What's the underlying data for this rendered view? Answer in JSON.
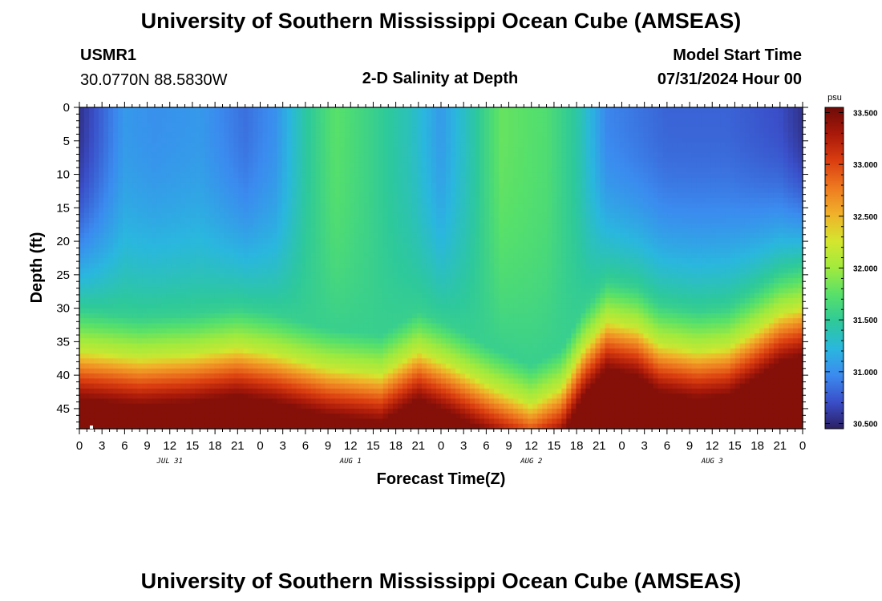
{
  "header": {
    "title": "University of Southern Mississippi Ocean Cube (AMSEAS)",
    "station_id": "USMR1",
    "station_coords": "30.0770N  88.5830W",
    "plot_title": "2-D Salinity at Depth",
    "model_start_label": "Model Start Time",
    "model_start_value": "07/31/2024 Hour 00"
  },
  "footer": {
    "title": "University of Southern Mississippi Ocean Cube (AMSEAS)"
  },
  "chart_data": {
    "type": "heatmap",
    "xlabel": "Forecast Time(Z)",
    "ylabel": "Depth (ft)",
    "x_hours": [
      0,
      96
    ],
    "x_tick_labels": [
      "0",
      "3",
      "6",
      "9",
      "12",
      "15",
      "18",
      "21",
      "0",
      "3",
      "6",
      "9",
      "12",
      "15",
      "18",
      "21",
      "0",
      "3",
      "6",
      "9",
      "12",
      "15",
      "18",
      "21",
      "0",
      "3",
      "6",
      "9",
      "12",
      "15",
      "18",
      "21",
      "0"
    ],
    "x_date_labels": [
      {
        "hour": 12,
        "label": "JUL 31"
      },
      {
        "hour": 36,
        "label": "AUG 1"
      },
      {
        "hour": 60,
        "label": "AUG 2"
      },
      {
        "hour": 84,
        "label": "AUG 3"
      }
    ],
    "y_range_ft": [
      0,
      48
    ],
    "y_tick_values": [
      0,
      5,
      10,
      15,
      20,
      25,
      30,
      35,
      40,
      45
    ],
    "colorbar": {
      "unit": "psu",
      "range": [
        30.45,
        33.55
      ],
      "tick_labels": [
        "33.500",
        "33.000",
        "32.500",
        "32.000",
        "31.500",
        "31.000",
        "30.500"
      ],
      "tick_values": [
        33.5,
        33.0,
        32.5,
        32.0,
        31.5,
        31.0,
        30.5
      ],
      "colormap": [
        "#2b1f63",
        "#3a4fc9",
        "#3b8bef",
        "#2ab7de",
        "#2ec99a",
        "#57e06a",
        "#a0ea3e",
        "#d4e62e",
        "#f0b22a",
        "#ee7a20",
        "#db3e10",
        "#a8190a",
        "#6e0b08"
      ]
    },
    "surface_salinity_profile": [
      {
        "hour": 0,
        "psu": 30.55
      },
      {
        "hour": 6,
        "psu": 31.05
      },
      {
        "hour": 10,
        "psu": 31.0
      },
      {
        "hour": 16,
        "psu": 31.05
      },
      {
        "hour": 22,
        "psu": 30.85
      },
      {
        "hour": 26,
        "psu": 31.0
      },
      {
        "hour": 30,
        "psu": 31.45
      },
      {
        "hour": 34,
        "psu": 31.75
      },
      {
        "hour": 38,
        "psu": 31.6
      },
      {
        "hour": 44,
        "psu": 31.35
      },
      {
        "hour": 48,
        "psu": 31.05
      },
      {
        "hour": 52,
        "psu": 31.4
      },
      {
        "hour": 56,
        "psu": 31.8
      },
      {
        "hour": 62,
        "psu": 31.7
      },
      {
        "hour": 66,
        "psu": 31.45
      },
      {
        "hour": 70,
        "psu": 30.95
      },
      {
        "hour": 78,
        "psu": 30.8
      },
      {
        "hour": 86,
        "psu": 30.8
      },
      {
        "hour": 93,
        "psu": 30.7
      },
      {
        "hour": 96,
        "psu": 30.55
      }
    ],
    "halocline_top_depth_ft": [
      {
        "hour": 0,
        "depth": 36.5
      },
      {
        "hour": 8,
        "depth": 37.5
      },
      {
        "hour": 15,
        "depth": 37.0
      },
      {
        "hour": 21,
        "depth": 36.0
      },
      {
        "hour": 26,
        "depth": 37.0
      },
      {
        "hour": 33,
        "depth": 39.0
      },
      {
        "hour": 40,
        "depth": 40.0
      },
      {
        "hour": 45,
        "depth": 36.5
      },
      {
        "hour": 49,
        "depth": 38.5
      },
      {
        "hour": 55,
        "depth": 42.0
      },
      {
        "hour": 60,
        "depth": 44.5
      },
      {
        "hour": 64,
        "depth": 42.0
      },
      {
        "hour": 67,
        "depth": 36.0
      },
      {
        "hour": 70,
        "depth": 32.0
      },
      {
        "hour": 74,
        "depth": 33.0
      },
      {
        "hour": 77,
        "depth": 35.5
      },
      {
        "hour": 82,
        "depth": 36.5
      },
      {
        "hour": 86,
        "depth": 36.0
      },
      {
        "hour": 89,
        "depth": 34.0
      },
      {
        "hour": 93,
        "depth": 31.0
      },
      {
        "hour": 96,
        "depth": 30.0
      }
    ]
  }
}
